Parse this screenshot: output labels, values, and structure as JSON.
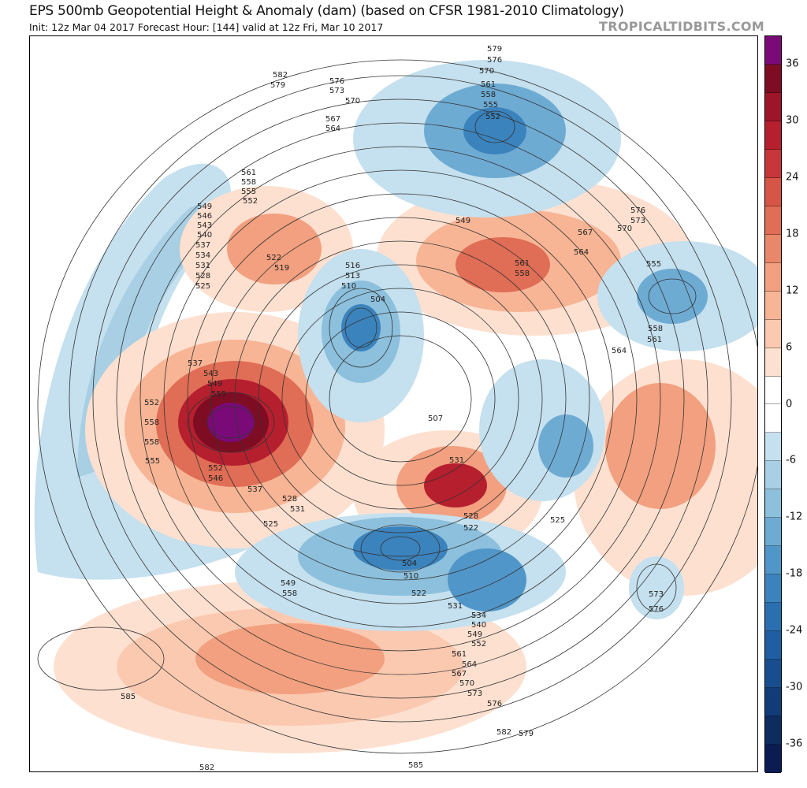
{
  "header": {
    "title": "EPS 500mb Geopotential Height & Anomaly (dam) (based on CFSR 1981-2010 Climatology)",
    "subtitle": "Init: 12z Mar 04 2017   Forecast Hour: [144]   valid at 12z Fri, Mar 10 2017",
    "brand": "TROPICALTIDBITS.COM"
  },
  "colorbar": {
    "ticks": [
      "36",
      "30",
      "24",
      "18",
      "12",
      "6",
      "0",
      "-6",
      "-12",
      "-18",
      "-24",
      "-30",
      "-36"
    ],
    "colors": [
      "#7a0a78",
      "#7e0d24",
      "#9e1529",
      "#b61f2e",
      "#c6363a",
      "#d65547",
      "#e06d55",
      "#e9876a",
      "#f2a07f",
      "#f7b596",
      "#fac9b0",
      "#fde0d0",
      "#ffffff",
      "#ffffff",
      "#c5e0ee",
      "#a8cfe4",
      "#8dc0dc",
      "#6eabd3",
      "#5196c8",
      "#3b83bd",
      "#2a6fb0",
      "#1f5ea3",
      "#184d8f",
      "#123c77",
      "#0c2d5e",
      "#0a1c52"
    ]
  },
  "map": {
    "contour_labels": [
      "582",
      "579",
      "576",
      "573",
      "570",
      "567",
      "564",
      "561",
      "558",
      "555",
      "552",
      "549",
      "546",
      "543",
      "540",
      "537",
      "534",
      "531",
      "528",
      "525",
      "522",
      "519",
      "516",
      "513",
      "510",
      "507",
      "504",
      "579",
      "576",
      "570",
      "561",
      "558",
      "555",
      "552",
      "549",
      "561",
      "558",
      "567",
      "564",
      "570",
      "576",
      "573",
      "555",
      "558",
      "561",
      "564",
      "537",
      "543",
      "549",
      "555",
      "552",
      "558",
      "558",
      "555",
      "552",
      "546",
      "537",
      "531",
      "525",
      "528",
      "522",
      "525",
      "531",
      "528",
      "504",
      "510",
      "522",
      "531",
      "534",
      "540",
      "549",
      "552",
      "561",
      "564",
      "567",
      "570",
      "573",
      "576",
      "579",
      "582",
      "585",
      "585",
      "582",
      "573",
      "576",
      "549",
      "558"
    ]
  }
}
